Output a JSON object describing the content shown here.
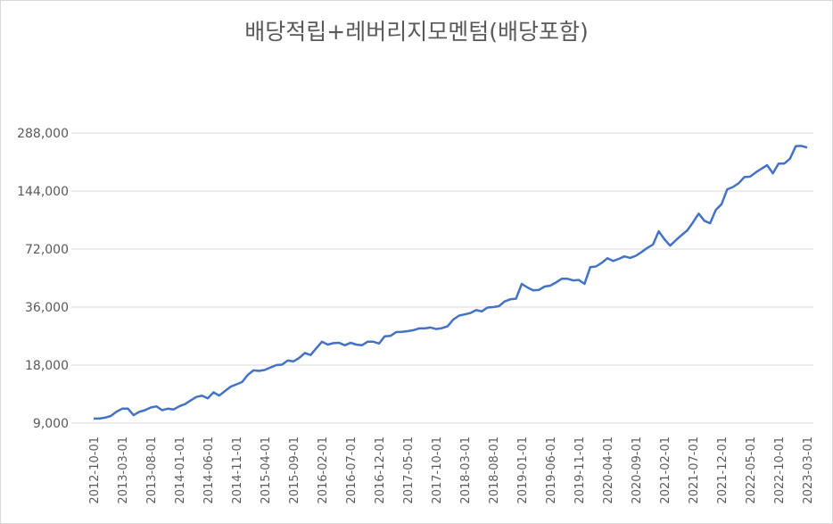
{
  "chart_data": {
    "type": "line",
    "title": "배당적립+레버리지모멘텀(배당포함)",
    "categories": [
      "2012-10-01",
      null,
      null,
      null,
      null,
      "2013-03-01",
      null,
      null,
      null,
      null,
      "2013-08-01",
      null,
      null,
      null,
      null,
      "2014-01-01",
      null,
      null,
      null,
      null,
      "2014-06-01",
      null,
      null,
      null,
      null,
      "2014-11-01",
      null,
      null,
      null,
      null,
      "2015-04-01",
      null,
      null,
      null,
      null,
      "2015-09-01",
      null,
      null,
      null,
      null,
      "2016-02-01",
      null,
      null,
      null,
      null,
      "2016-07-01",
      null,
      null,
      null,
      null,
      "2016-12-01",
      null,
      null,
      null,
      null,
      "2017-05-01",
      null,
      null,
      null,
      null,
      "2017-10-01",
      null,
      null,
      null,
      null,
      "2018-03-01",
      null,
      null,
      null,
      null,
      "2018-08-01",
      null,
      null,
      null,
      null,
      "2019-01-01",
      null,
      null,
      null,
      null,
      "2019-06-01",
      null,
      null,
      null,
      null,
      "2019-11-01",
      null,
      null,
      null,
      null,
      "2020-04-01",
      null,
      null,
      null,
      null,
      "2020-09-01",
      null,
      null,
      null,
      null,
      "2021-02-01",
      null,
      null,
      null,
      null,
      "2021-07-01",
      null,
      null,
      null,
      null,
      "2021-12-01",
      null,
      null,
      null,
      null,
      "2022-05-01",
      null,
      null,
      null,
      null,
      "2022-10-01",
      null,
      null,
      null,
      null,
      "2023-03-01"
    ],
    "values": [
      9500,
      9500,
      9600,
      9800,
      10300,
      10700,
      10700,
      9900,
      10300,
      10500,
      10850,
      11000,
      10500,
      10700,
      10600,
      11000,
      11300,
      11800,
      12300,
      12500,
      12100,
      13000,
      12500,
      13200,
      13900,
      14300,
      14700,
      16000,
      16900,
      16800,
      17000,
      17500,
      18000,
      18100,
      19000,
      18800,
      19600,
      20800,
      20300,
      22000,
      23800,
      23000,
      23400,
      23500,
      22800,
      23500,
      23000,
      22800,
      23800,
      23800,
      23300,
      25400,
      25500,
      26700,
      26800,
      27000,
      27300,
      27900,
      27900,
      28200,
      27700,
      28000,
      28600,
      31000,
      32500,
      33000,
      33500,
      34700,
      34200,
      35800,
      36000,
      36400,
      38500,
      39500,
      39800,
      47500,
      45500,
      44000,
      44200,
      46000,
      46500,
      48300,
      50500,
      50500,
      49500,
      49800,
      47500,
      58000,
      58500,
      61000,
      64500,
      62500,
      64000,
      66000,
      64800,
      66500,
      69500,
      73000,
      76000,
      89000,
      81000,
      75000,
      80000,
      85000,
      90000,
      99000,
      110000,
      101000,
      98000,
      115000,
      123000,
      147000,
      151000,
      158000,
      170000,
      171000,
      180000,
      188000,
      196000,
      178000,
      200000,
      200000,
      212000,
      246000,
      247000,
      242000
    ],
    "color": "#4472c4",
    "log_scale": true,
    "ylim": [
      9000,
      288000
    ],
    "yticks": [
      {
        "value": 9000,
        "label": "9,000"
      },
      {
        "value": 18000,
        "label": "18,000"
      },
      {
        "value": 36000,
        "label": "36,000"
      },
      {
        "value": 72000,
        "label": "72,000"
      },
      {
        "value": 144000,
        "label": "144,000"
      },
      {
        "value": 288000,
        "label": "288,000"
      }
    ],
    "grid": true
  }
}
